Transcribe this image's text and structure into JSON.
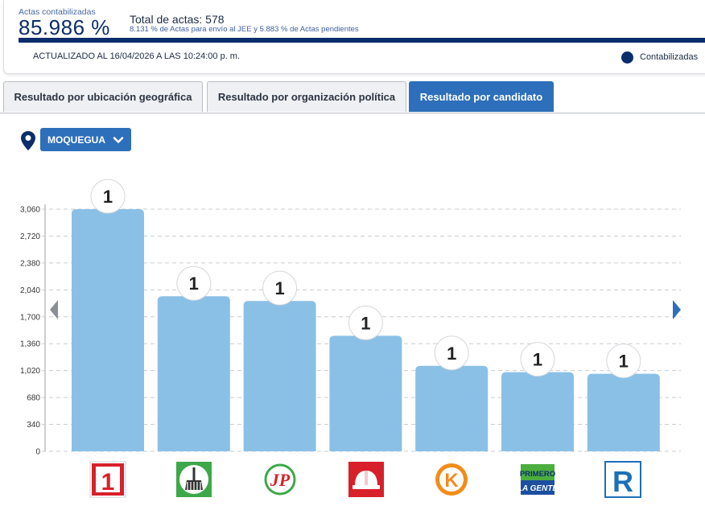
{
  "header": {
    "actas_label": "Actas contabilizadas",
    "actas_percent": "85.986 %",
    "total_actas": "Total de actas: 578",
    "sub_note": "8.131 % de Actas para envío al JEE y 5.883 % de Actas pendientes",
    "updated": "ACTUALIZADO AL 16/04/2026 A LAS 10:24:00 p. m.",
    "legend_label": "Contabilizadas",
    "legend_color": "#0b2d6b"
  },
  "tabs": [
    {
      "label": "Resultado por ubicación geográfica",
      "active": false
    },
    {
      "label": "Resultado por organización política",
      "active": false
    },
    {
      "label": "Resultado por candidato",
      "active": true
    }
  ],
  "filter": {
    "icon": "map-pin-icon",
    "region": "MOQUEGUA",
    "dropdown_icon": "chevron-down-icon"
  },
  "nav": {
    "prev_icon": "triangle-left-icon",
    "next_icon": "triangle-right-icon"
  },
  "colors": {
    "bar": "#8ac0e6",
    "accent": "#2d6fba",
    "dark_blue": "#0b2d6b"
  },
  "chart_data": {
    "type": "bar",
    "yticks": [
      "0",
      "340",
      "680",
      "1,020",
      "1,360",
      "1,700",
      "2,040",
      "2,380",
      "2,720",
      "3,060"
    ],
    "ylim": [
      0,
      3060
    ],
    "grid": true,
    "categories": [
      "party-1-logo",
      "party-broom-logo",
      "party-jp-logo",
      "party-helmet-logo",
      "party-k-logo",
      "party-primero-la-gente-logo",
      "party-r-logo"
    ],
    "values": [
      3060,
      1960,
      1900,
      1460,
      1080,
      1000,
      980
    ],
    "badges": [
      "1",
      "1",
      "1",
      "1",
      "1",
      "1",
      "1"
    ],
    "logo_texts": [
      "1",
      "",
      "JP",
      "",
      "K",
      "PRIMERO LA GENTE",
      "R"
    ]
  }
}
